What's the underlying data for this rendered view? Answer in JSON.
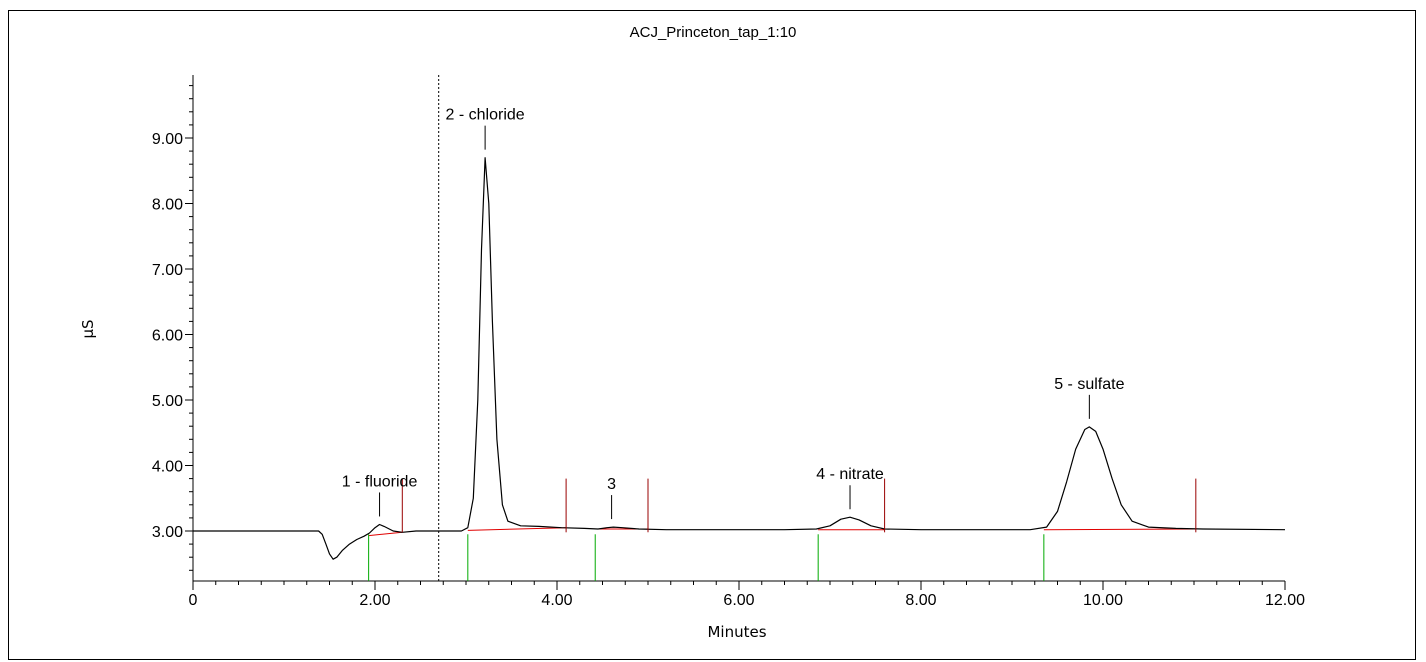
{
  "chart_data": {
    "type": "line",
    "title": "ACJ_Princeton_tap_1:10",
    "xlabel": "Minutes",
    "ylabel": "µS",
    "xlim": [
      0,
      12
    ],
    "ylim": [
      2.2,
      9.9
    ],
    "x_ticks": [
      0,
      2,
      4,
      6,
      8,
      10,
      12
    ],
    "x_tick_labels": [
      "0",
      "2.00",
      "4.00",
      "6.00",
      "8.00",
      "10.00",
      "12.00"
    ],
    "y_ticks": [
      3,
      4,
      5,
      6,
      7,
      8,
      9
    ],
    "y_tick_labels": [
      "3.00",
      "4.00",
      "5.00",
      "6.00",
      "7.00",
      "8.00",
      "9.00"
    ],
    "grid": false,
    "colors": {
      "trace": "#000000",
      "baseline": "#e00000",
      "peak_end": "#990000",
      "peak_start": "#00aa00"
    },
    "trace": {
      "name": "",
      "points": [
        [
          0,
          3.0
        ],
        [
          1.0,
          3.0
        ],
        [
          1.38,
          3.0
        ],
        [
          1.42,
          2.95
        ],
        [
          1.46,
          2.8
        ],
        [
          1.5,
          2.65
        ],
        [
          1.54,
          2.57
        ],
        [
          1.58,
          2.6
        ],
        [
          1.64,
          2.7
        ],
        [
          1.72,
          2.8
        ],
        [
          1.8,
          2.87
        ],
        [
          1.88,
          2.92
        ],
        [
          1.94,
          2.97
        ],
        [
          2.0,
          3.05
        ],
        [
          2.05,
          3.1
        ],
        [
          2.1,
          3.07
        ],
        [
          2.2,
          3.0
        ],
        [
          2.3,
          2.98
        ],
        [
          2.45,
          3.0
        ],
        [
          2.8,
          3.0
        ],
        [
          2.95,
          3.0
        ],
        [
          3.02,
          3.05
        ],
        [
          3.08,
          3.5
        ],
        [
          3.13,
          5.0
        ],
        [
          3.17,
          7.3
        ],
        [
          3.21,
          8.7
        ],
        [
          3.25,
          8.0
        ],
        [
          3.29,
          6.2
        ],
        [
          3.34,
          4.4
        ],
        [
          3.4,
          3.4
        ],
        [
          3.46,
          3.15
        ],
        [
          3.6,
          3.08
        ],
        [
          3.8,
          3.07
        ],
        [
          4.05,
          3.05
        ],
        [
          4.3,
          3.04
        ],
        [
          4.45,
          3.03
        ],
        [
          4.55,
          3.05
        ],
        [
          4.62,
          3.06
        ],
        [
          4.72,
          3.05
        ],
        [
          4.9,
          3.03
        ],
        [
          5.2,
          3.02
        ],
        [
          6.5,
          3.02
        ],
        [
          6.85,
          3.03
        ],
        [
          7.0,
          3.08
        ],
        [
          7.12,
          3.18
        ],
        [
          7.22,
          3.21
        ],
        [
          7.32,
          3.17
        ],
        [
          7.45,
          3.08
        ],
        [
          7.6,
          3.03
        ],
        [
          8.0,
          3.02
        ],
        [
          9.2,
          3.02
        ],
        [
          9.38,
          3.06
        ],
        [
          9.5,
          3.3
        ],
        [
          9.6,
          3.75
        ],
        [
          9.7,
          4.25
        ],
        [
          9.8,
          4.55
        ],
        [
          9.85,
          4.59
        ],
        [
          9.92,
          4.52
        ],
        [
          10.0,
          4.25
        ],
        [
          10.1,
          3.8
        ],
        [
          10.2,
          3.4
        ],
        [
          10.32,
          3.15
        ],
        [
          10.5,
          3.06
        ],
        [
          10.8,
          3.04
        ],
        [
          11.1,
          3.03
        ],
        [
          12.0,
          3.02
        ]
      ]
    },
    "dashed_marker_x": 2.7,
    "peaks": [
      {
        "label": "1 - fluoride",
        "apex_x": 2.05,
        "apex_y": 3.1,
        "start_x": 1.93,
        "end_x": 2.3
      },
      {
        "label": "2 - chloride",
        "apex_x": 3.21,
        "apex_y": 8.7,
        "start_x": 3.02,
        "end_x": 4.1
      },
      {
        "label": "3",
        "apex_x": 4.6,
        "apex_y": 3.06,
        "start_x": 4.42,
        "end_x": 5.0
      },
      {
        "label": "4 - nitrate",
        "apex_x": 7.22,
        "apex_y": 3.21,
        "start_x": 6.87,
        "end_x": 7.6
      },
      {
        "label": "5 - sulfate",
        "apex_x": 9.85,
        "apex_y": 4.59,
        "start_x": 9.35,
        "end_x": 11.02
      }
    ],
    "baselines": [
      {
        "x": [
          1.93,
          2.3
        ],
        "y": [
          2.93,
          2.98
        ]
      },
      {
        "x": [
          3.02,
          4.1
        ],
        "y": [
          3.01,
          3.05
        ]
      },
      {
        "x": [
          4.42,
          5.0
        ],
        "y": [
          3.03,
          3.03
        ]
      },
      {
        "x": [
          6.87,
          7.6
        ],
        "y": [
          3.02,
          3.02
        ]
      },
      {
        "x": [
          9.35,
          11.02
        ],
        "y": [
          3.02,
          3.03
        ]
      }
    ]
  }
}
